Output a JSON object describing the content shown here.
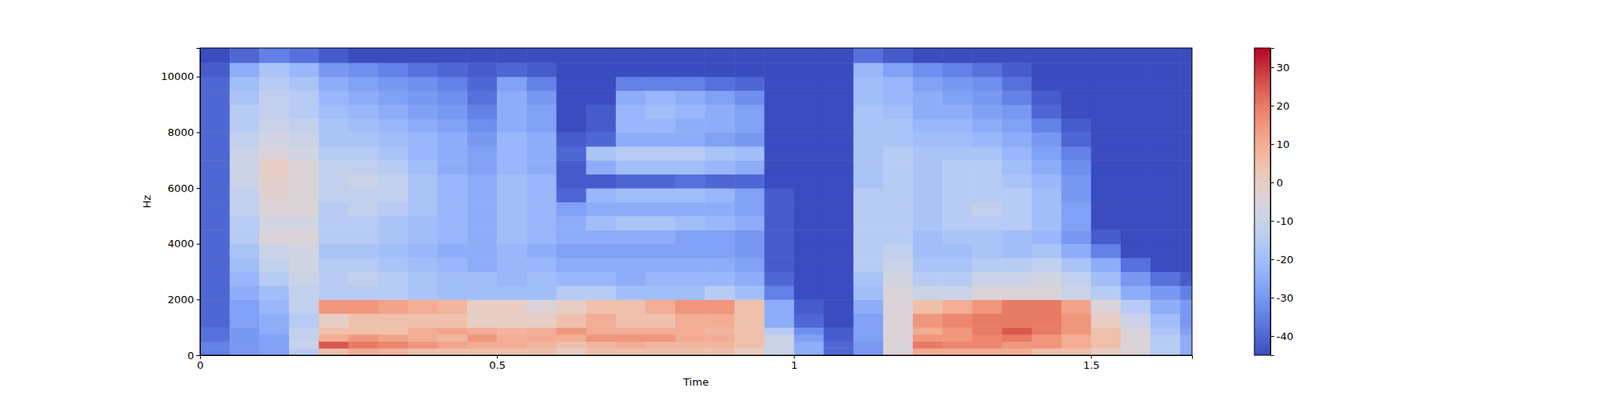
{
  "chart_data": {
    "type": "heatmap",
    "x_label": "Time",
    "y_label": "Hz",
    "xlim": [
      0,
      1.67
    ],
    "ylim": [
      0,
      11025
    ],
    "xticks": [
      0,
      0.5,
      1,
      1.5
    ],
    "yticks": [
      0,
      2000,
      4000,
      6000,
      8000,
      10000
    ],
    "x_edges": [
      0,
      0.05,
      0.1,
      0.15,
      0.2,
      0.25,
      0.3,
      0.35,
      0.4,
      0.45,
      0.5,
      0.55,
      0.6,
      0.65,
      0.7,
      0.75,
      0.8,
      0.85,
      0.9,
      0.95,
      1.0,
      1.05,
      1.1,
      1.15,
      1.2,
      1.25,
      1.3,
      1.35,
      1.4,
      1.45,
      1.5,
      1.55,
      1.6,
      1.65,
      1.67
    ],
    "y_edges": [
      0,
      250,
      500,
      750,
      1000,
      1500,
      2000,
      2500,
      3000,
      3500,
      4000,
      4500,
      5000,
      5500,
      6000,
      6500,
      7000,
      7500,
      8000,
      8500,
      9000,
      9500,
      10000,
      10500,
      11025
    ],
    "z": [
      [
        -35,
        -30,
        -28,
        -15,
        5,
        10,
        8,
        5,
        5,
        5,
        5,
        5,
        0,
        5,
        5,
        5,
        5,
        5,
        0,
        -10,
        -25,
        -40,
        -30,
        -5,
        10,
        10,
        10,
        10,
        5,
        5,
        0,
        -5,
        -15,
        -25
      ],
      [
        -35,
        -30,
        -28,
        -10,
        25,
        20,
        18,
        15,
        12,
        10,
        10,
        8,
        5,
        8,
        10,
        8,
        8,
        8,
        5,
        -10,
        -25,
        -40,
        -30,
        -5,
        20,
        18,
        18,
        15,
        15,
        10,
        5,
        -5,
        -15,
        -25
      ],
      [
        -38,
        -30,
        -28,
        -12,
        10,
        15,
        12,
        10,
        8,
        15,
        10,
        10,
        10,
        15,
        15,
        15,
        10,
        10,
        5,
        -10,
        -28,
        -42,
        -28,
        -5,
        15,
        15,
        18,
        20,
        15,
        10,
        5,
        -5,
        -15,
        -25
      ],
      [
        -38,
        -30,
        -25,
        -12,
        5,
        5,
        5,
        10,
        12,
        10,
        8,
        10,
        15,
        10,
        10,
        10,
        10,
        8,
        5,
        -15,
        -32,
        -42,
        -28,
        -5,
        10,
        15,
        20,
        25,
        20,
        15,
        5,
        -5,
        -18,
        -28
      ],
      [
        -40,
        -28,
        -25,
        -15,
        0,
        5,
        5,
        5,
        5,
        0,
        0,
        0,
        5,
        10,
        5,
        5,
        10,
        10,
        5,
        -25,
        -40,
        -45,
        -28,
        -5,
        15,
        18,
        20,
        20,
        20,
        15,
        0,
        -10,
        -20,
        -30
      ],
      [
        -40,
        -28,
        -22,
        -12,
        15,
        15,
        12,
        10,
        8,
        0,
        0,
        -5,
        0,
        5,
        5,
        10,
        15,
        15,
        5,
        -25,
        -42,
        -45,
        -25,
        -5,
        5,
        10,
        15,
        20,
        20,
        12,
        -5,
        -15,
        -25,
        -30
      ],
      [
        -40,
        -25,
        -20,
        -12,
        -15,
        -15,
        -15,
        -18,
        -20,
        -20,
        -20,
        -20,
        -15,
        -15,
        -20,
        -20,
        -20,
        -15,
        -20,
        -35,
        -45,
        -45,
        -20,
        -5,
        -10,
        -10,
        -5,
        -5,
        -5,
        -10,
        -15,
        -25,
        -30,
        -35
      ],
      [
        -40,
        -22,
        -15,
        -10,
        -15,
        -12,
        -15,
        -18,
        -20,
        -20,
        -22,
        -20,
        -22,
        -22,
        -25,
        -22,
        -22,
        -22,
        -25,
        -40,
        -45,
        -45,
        -18,
        -8,
        -15,
        -15,
        -10,
        -10,
        -8,
        -12,
        -20,
        -30,
        -38,
        -42
      ],
      [
        -40,
        -20,
        -12,
        -8,
        -15,
        -15,
        -18,
        -20,
        -22,
        -25,
        -22,
        -22,
        -25,
        -25,
        -25,
        -25,
        -25,
        -25,
        -28,
        -42,
        -45,
        -45,
        -15,
        -10,
        -18,
        -18,
        -15,
        -15,
        -12,
        -18,
        -25,
        -38,
        -45,
        -45
      ],
      [
        -40,
        -18,
        -10,
        -8,
        -18,
        -18,
        -20,
        -22,
        -25,
        -25,
        -22,
        -25,
        -28,
        -28,
        -28,
        -28,
        -28,
        -28,
        -30,
        -42,
        -45,
        -45,
        -15,
        -12,
        -20,
        -20,
        -18,
        -20,
        -18,
        -25,
        -35,
        -45,
        -45,
        -45
      ],
      [
        -40,
        -15,
        -5,
        -5,
        -15,
        -15,
        -18,
        -20,
        -22,
        -25,
        -20,
        -22,
        -25,
        -25,
        -25,
        -25,
        -28,
        -28,
        -30,
        -42,
        -45,
        -45,
        -15,
        -15,
        -20,
        -18,
        -18,
        -20,
        -22,
        -30,
        -42,
        -45,
        -45,
        -45
      ],
      [
        -40,
        -15,
        -8,
        -8,
        -15,
        -15,
        -18,
        -20,
        -22,
        -25,
        -20,
        -22,
        -25,
        -20,
        -18,
        -18,
        -20,
        -22,
        -25,
        -42,
        -45,
        -45,
        -15,
        -15,
        -18,
        -15,
        -15,
        -15,
        -20,
        -28,
        -45,
        -45,
        -45,
        -45
      ],
      [
        -40,
        -12,
        -5,
        -5,
        -15,
        -12,
        -15,
        -18,
        -22,
        -25,
        -20,
        -22,
        -28,
        -25,
        -25,
        -25,
        -25,
        -25,
        -28,
        -42,
        -45,
        -45,
        -15,
        -15,
        -18,
        -15,
        -12,
        -15,
        -20,
        -28,
        -45,
        -45,
        -45,
        -45
      ],
      [
        -40,
        -12,
        -3,
        -5,
        -12,
        -12,
        -12,
        -18,
        -22,
        -25,
        -20,
        -22,
        -40,
        -22,
        -20,
        -20,
        -20,
        -22,
        -28,
        -42,
        -45,
        -45,
        -15,
        -15,
        -18,
        -15,
        -15,
        -15,
        -20,
        -30,
        -45,
        -45,
        -45,
        -45
      ],
      [
        -40,
        -10,
        -2,
        -5,
        -12,
        -10,
        -12,
        -18,
        -22,
        -25,
        -20,
        -22,
        -42,
        -42,
        -40,
        -40,
        -38,
        -40,
        -40,
        -45,
        -45,
        -45,
        -18,
        -15,
        -18,
        -15,
        -15,
        -18,
        -22,
        -30,
        -45,
        -45,
        -45,
        -45
      ],
      [
        -40,
        -10,
        0,
        -5,
        -12,
        -12,
        -15,
        -20,
        -25,
        -28,
        -22,
        -25,
        -42,
        -25,
        -20,
        -20,
        -20,
        -22,
        -25,
        -45,
        -45,
        -45,
        -18,
        -15,
        -18,
        -15,
        -15,
        -20,
        -25,
        -32,
        -45,
        -45,
        -45,
        -45
      ],
      [
        -40,
        -10,
        -5,
        -8,
        -15,
        -15,
        -18,
        -22,
        -25,
        -28,
        -22,
        -25,
        -40,
        -18,
        -15,
        -15,
        -15,
        -18,
        -20,
        -45,
        -45,
        -45,
        -18,
        -15,
        -18,
        -18,
        -18,
        -22,
        -28,
        -35,
        -45,
        -45,
        -45,
        -45
      ],
      [
        -40,
        -12,
        -8,
        -10,
        -18,
        -18,
        -20,
        -22,
        -25,
        -30,
        -22,
        -25,
        -42,
        -40,
        -25,
        -25,
        -25,
        -28,
        -30,
        -45,
        -45,
        -45,
        -18,
        -18,
        -20,
        -20,
        -22,
        -25,
        -30,
        -40,
        -45,
        -45,
        -45,
        -45
      ],
      [
        -40,
        -15,
        -10,
        -12,
        -18,
        -20,
        -22,
        -25,
        -28,
        -32,
        -25,
        -28,
        -45,
        -42,
        -22,
        -22,
        -25,
        -25,
        -28,
        -45,
        -45,
        -45,
        -18,
        -18,
        -22,
        -22,
        -25,
        -28,
        -35,
        -42,
        -45,
        -45,
        -45,
        -45
      ],
      [
        -40,
        -15,
        -12,
        -15,
        -20,
        -22,
        -25,
        -28,
        -30,
        -35,
        -25,
        -28,
        -45,
        -42,
        -22,
        -20,
        -22,
        -25,
        -28,
        -45,
        -45,
        -45,
        -18,
        -20,
        -25,
        -25,
        -28,
        -30,
        -40,
        -45,
        -45,
        -45,
        -45,
        -45
      ],
      [
        -40,
        -18,
        -12,
        -15,
        -22,
        -25,
        -28,
        -30,
        -32,
        -38,
        -25,
        -30,
        -45,
        -45,
        -25,
        -22,
        -25,
        -28,
        -32,
        -45,
        -45,
        -45,
        -20,
        -22,
        -25,
        -28,
        -30,
        -35,
        -42,
        -45,
        -45,
        -45,
        -45,
        -45
      ],
      [
        -40,
        -20,
        -15,
        -18,
        -25,
        -28,
        -30,
        -32,
        -35,
        -40,
        -28,
        -35,
        -45,
        -45,
        -35,
        -35,
        -35,
        -38,
        -40,
        -45,
        -45,
        -45,
        -20,
        -22,
        -28,
        -30,
        -32,
        -38,
        -45,
        -45,
        -45,
        -45,
        -45,
        -45
      ],
      [
        -42,
        -25,
        -18,
        -22,
        -30,
        -32,
        -35,
        -38,
        -40,
        -42,
        -40,
        -42,
        -45,
        -45,
        -45,
        -45,
        -45,
        -45,
        -45,
        -45,
        -45,
        -45,
        -22,
        -28,
        -32,
        -35,
        -38,
        -42,
        -45,
        -45,
        -45,
        -45,
        -45,
        -45
      ],
      [
        -45,
        -40,
        -35,
        -38,
        -42,
        -45,
        -45,
        -45,
        -45,
        -45,
        -45,
        -45,
        -45,
        -45,
        -45,
        -45,
        -45,
        -45,
        -45,
        -45,
        -45,
        -45,
        -38,
        -42,
        -45,
        -45,
        -45,
        -45,
        -45,
        -45,
        -45,
        -45,
        -45,
        -45
      ]
    ],
    "colorbar": {
      "range": [
        -45,
        35
      ],
      "ticks": [
        -40,
        -30,
        -20,
        -10,
        0,
        10,
        20,
        30
      ]
    }
  }
}
